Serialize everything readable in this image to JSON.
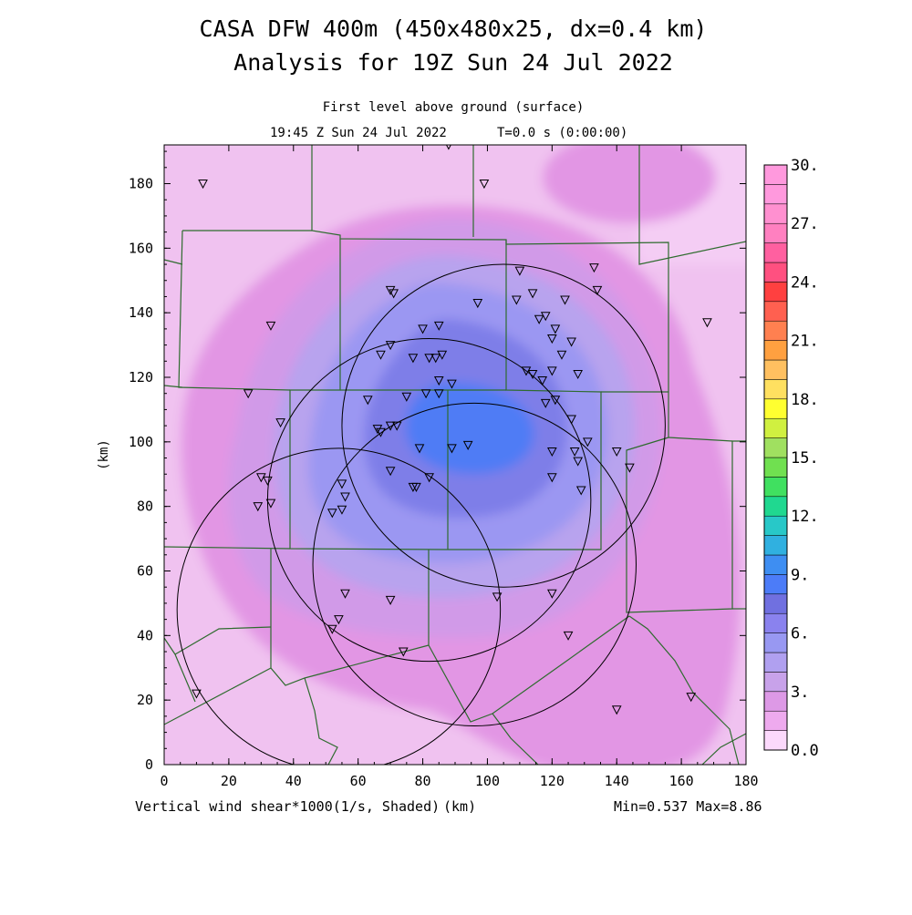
{
  "chart_data": {
    "type": "heatmap",
    "title": "CASA DFW 400m (450x480x25, dx=0.4 km)",
    "subtitle": "Analysis for 19Z Sun 24 Jul 2022",
    "level": "First level above ground (surface)",
    "valid_time": "19:45 Z Sun 24 Jul 2022",
    "forecast_time": "T=0.0 s (0:00:00)",
    "xlabel": "(km)",
    "ylabel": "(km)",
    "field_label": "Vertical wind shear*1000(1/s, Shaded)",
    "stats": "Min=0.537 Max=8.86",
    "xlim": [
      0,
      180
    ],
    "ylim": [
      0,
      192
    ],
    "x_ticks": [
      "0",
      "20",
      "40",
      "60",
      "80",
      "100",
      "120",
      "140",
      "160",
      "180"
    ],
    "y_ticks": [
      "0",
      "20",
      "40",
      "60",
      "80",
      "100",
      "120",
      "140",
      "160",
      "180"
    ],
    "colorbar": {
      "min": 0.0,
      "max": 30.0,
      "step": 1.5,
      "labels": [
        "0.0",
        "3.",
        "6.",
        "9.",
        "12.",
        "15.",
        "18.",
        "21.",
        "24.",
        "27.",
        "30."
      ],
      "colors": [
        "#fcd9fc",
        "#eeaaee",
        "#dd99e6",
        "#c8a2ea",
        "#b0a0f0",
        "#9898f2",
        "#8a82ee",
        "#7070e0",
        "#4c7cf8",
        "#3e8ef2",
        "#30b0e0",
        "#28c8c8",
        "#20d890",
        "#40e060",
        "#70e050",
        "#a0e060",
        "#d0f040",
        "#ffff30",
        "#ffe060",
        "#ffc060",
        "#ffa040",
        "#ff8050",
        "#ff6050",
        "#ff4040",
        "#ff5080",
        "#ff60a0",
        "#ff80c0",
        "#ff90d0",
        "#ff99dd",
        "#ff99dd"
      ]
    },
    "radar_circles": [
      {
        "cx": 105,
        "cy": 105,
        "r": 50
      },
      {
        "cx": 82,
        "cy": 82,
        "r": 50
      },
      {
        "cx": 96,
        "cy": 62,
        "r": 50
      },
      {
        "cx": 54,
        "cy": 48,
        "r": 50
      }
    ],
    "stations": [
      [
        88,
        192
      ],
      [
        12,
        180
      ],
      [
        99,
        180
      ],
      [
        110,
        153
      ],
      [
        133,
        154
      ],
      [
        114,
        146
      ],
      [
        134,
        147
      ],
      [
        70,
        147
      ],
      [
        71,
        146
      ],
      [
        124,
        144
      ],
      [
        97,
        143
      ],
      [
        109,
        144
      ],
      [
        85,
        136
      ],
      [
        80,
        135
      ],
      [
        33,
        136
      ],
      [
        118,
        139
      ],
      [
        116,
        138
      ],
      [
        168,
        137
      ],
      [
        121,
        135
      ],
      [
        126,
        131
      ],
      [
        120,
        132
      ],
      [
        70,
        130
      ],
      [
        67,
        127
      ],
      [
        86,
        127
      ],
      [
        82,
        126
      ],
      [
        84,
        126
      ],
      [
        123,
        127
      ],
      [
        77,
        126
      ],
      [
        112,
        122
      ],
      [
        114,
        121
      ],
      [
        120,
        122
      ],
      [
        117,
        119
      ],
      [
        128,
        121
      ],
      [
        81,
        115
      ],
      [
        85,
        119
      ],
      [
        89,
        118
      ],
      [
        26,
        115
      ],
      [
        63,
        113
      ],
      [
        85,
        115
      ],
      [
        75,
        114
      ],
      [
        118,
        112
      ],
      [
        121,
        113
      ],
      [
        36,
        106
      ],
      [
        70,
        105
      ],
      [
        72,
        105
      ],
      [
        66,
        104
      ],
      [
        67,
        103
      ],
      [
        126,
        107
      ],
      [
        131,
        100
      ],
      [
        127,
        97
      ],
      [
        140,
        97
      ],
      [
        94,
        99
      ],
      [
        89,
        98
      ],
      [
        79,
        98
      ],
      [
        120,
        97
      ],
      [
        128,
        94
      ],
      [
        144,
        92
      ],
      [
        70,
        91
      ],
      [
        30,
        89
      ],
      [
        32,
        88
      ],
      [
        120,
        89
      ],
      [
        82,
        89
      ],
      [
        55,
        87
      ],
      [
        78,
        86
      ],
      [
        77,
        86
      ],
      [
        56,
        83
      ],
      [
        129,
        85
      ],
      [
        29,
        80
      ],
      [
        33,
        81
      ],
      [
        55,
        79
      ],
      [
        52,
        78
      ],
      [
        56,
        53
      ],
      [
        70,
        51
      ],
      [
        103,
        52
      ],
      [
        120,
        53
      ],
      [
        54,
        45
      ],
      [
        52,
        42
      ],
      [
        125,
        40
      ],
      [
        74,
        35
      ],
      [
        10,
        22
      ],
      [
        140,
        17
      ],
      [
        163,
        21
      ]
    ]
  }
}
